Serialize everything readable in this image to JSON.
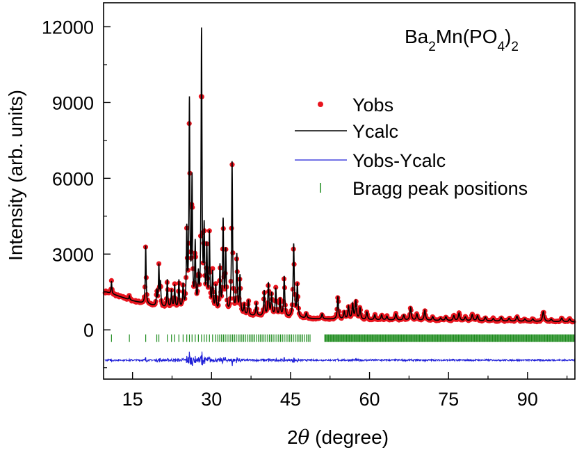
{
  "chart_data": {
    "type": "scatter",
    "title": "",
    "annotation": {
      "formula": "Ba",
      "sub1": "2",
      "mid": "Mn(PO",
      "sub2": "4",
      "end": ")",
      "sub3": "2"
    },
    "xlabel": {
      "prefix": "2",
      "theta": "θ",
      "suffix": " (degree)"
    },
    "ylabel": "Intensity (arb. units)",
    "xlim": [
      9.5,
      99
    ],
    "ylim": [
      -1950,
      12950
    ],
    "x_ticks": [
      15,
      30,
      45,
      60,
      75,
      90
    ],
    "y_ticks": [
      0,
      3000,
      6000,
      9000,
      12000
    ],
    "x_tick_labels": [
      "15",
      "30",
      "45",
      "60",
      "75",
      "90"
    ],
    "y_tick_labels": [
      "0",
      "3000",
      "6000",
      "9000",
      "12000"
    ],
    "grid": false,
    "legend_position": "right-center",
    "colors": {
      "obs": "#e8141e",
      "calc": "#000000",
      "diff": "#1f1fd8",
      "bragg": "#1e8c1e"
    },
    "series": [
      {
        "name": "Yobs",
        "style": "dots"
      },
      {
        "name": "Ycalc",
        "style": "line"
      },
      {
        "name": "Yobs-Ycalc",
        "style": "line"
      },
      {
        "name": "Bragg peak positions",
        "style": "ticks"
      }
    ],
    "bragg_offset": -330,
    "diff_offset": -1200,
    "background": [
      [
        10,
        1500
      ],
      [
        15,
        1150
      ],
      [
        20,
        900
      ],
      [
        25,
        780
      ],
      [
        30,
        650
      ],
      [
        35,
        560
      ],
      [
        40,
        520
      ],
      [
        45,
        470
      ],
      [
        50,
        430
      ],
      [
        55,
        410
      ],
      [
        60,
        390
      ],
      [
        65,
        380
      ],
      [
        70,
        370
      ],
      [
        75,
        360
      ],
      [
        80,
        350
      ],
      [
        85,
        340
      ],
      [
        90,
        330
      ],
      [
        95,
        320
      ],
      [
        99,
        310
      ]
    ],
    "peaks": [
      [
        11,
        500
      ],
      [
        14.4,
        150
      ],
      [
        17.5,
        2300
      ],
      [
        19.6,
        600
      ],
      [
        20.0,
        1600
      ],
      [
        20.3,
        900
      ],
      [
        21.6,
        1100
      ],
      [
        22.4,
        700
      ],
      [
        23.0,
        900
      ],
      [
        23.8,
        1100
      ],
      [
        24.6,
        900
      ],
      [
        25.3,
        3000
      ],
      [
        25.8,
        8100
      ],
      [
        26.3,
        5000
      ],
      [
        26.9,
        2500
      ],
      [
        27.5,
        1200
      ],
      [
        28.1,
        11000
      ],
      [
        28.6,
        3000
      ],
      [
        29.1,
        2400
      ],
      [
        29.6,
        3000
      ],
      [
        30.2,
        1500
      ],
      [
        30.8,
        1000
      ],
      [
        31.6,
        1800
      ],
      [
        32.2,
        3600
      ],
      [
        32.7,
        2400
      ],
      [
        33.9,
        6000
      ],
      [
        34.8,
        2300
      ],
      [
        35.4,
        1500
      ],
      [
        36.2,
        400
      ],
      [
        37.0,
        600
      ],
      [
        38.5,
        500
      ],
      [
        40.0,
        1000
      ],
      [
        40.8,
        1300
      ],
      [
        41.4,
        900
      ],
      [
        42.2,
        1100
      ],
      [
        43.0,
        700
      ],
      [
        43.8,
        1600
      ],
      [
        45.6,
        2900
      ],
      [
        46.3,
        1300
      ],
      [
        48.0,
        200
      ],
      [
        51.0,
        200
      ],
      [
        54.0,
        900
      ],
      [
        55.2,
        300
      ],
      [
        56.0,
        500
      ],
      [
        56.8,
        600
      ],
      [
        57.4,
        700
      ],
      [
        58.2,
        450
      ],
      [
        59.5,
        300
      ],
      [
        61.0,
        200
      ],
      [
        62.3,
        200
      ],
      [
        63.3,
        150
      ],
      [
        65.0,
        250
      ],
      [
        66.5,
        200
      ],
      [
        67.8,
        500
      ],
      [
        69.0,
        250
      ],
      [
        70.5,
        400
      ],
      [
        72.0,
        150
      ],
      [
        73.5,
        100
      ],
      [
        74.5,
        150
      ],
      [
        76.0,
        200
      ],
      [
        77.0,
        300
      ],
      [
        78.2,
        150
      ],
      [
        79.5,
        250
      ],
      [
        80.5,
        200
      ],
      [
        82.0,
        150
      ],
      [
        83.5,
        100
      ],
      [
        85.0,
        150
      ],
      [
        86.5,
        120
      ],
      [
        88.0,
        200
      ],
      [
        89.5,
        100
      ],
      [
        91.0,
        100
      ],
      [
        93.0,
        400
      ],
      [
        94.5,
        100
      ],
      [
        96.5,
        150
      ],
      [
        98.0,
        120
      ]
    ]
  }
}
